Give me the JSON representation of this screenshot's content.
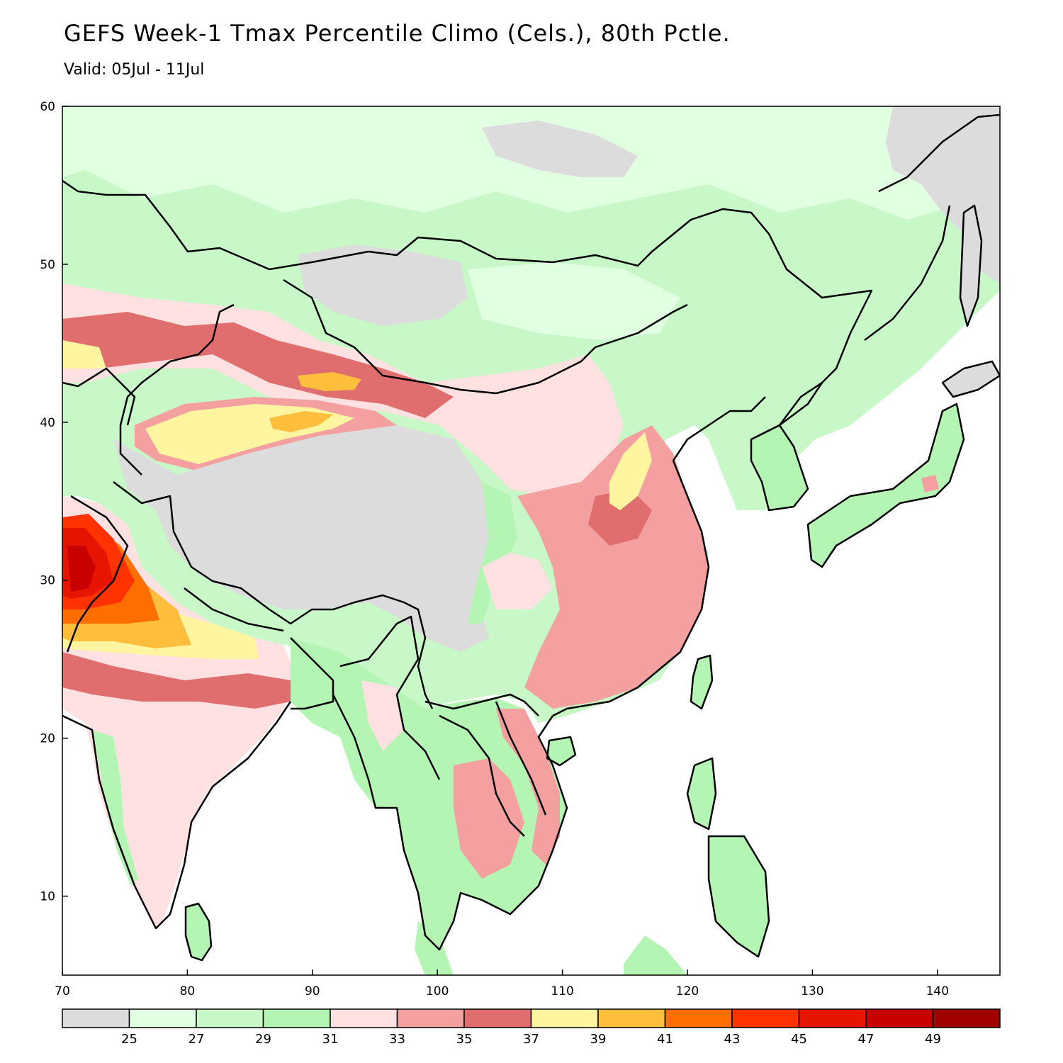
{
  "title": "GEFS Week-1 Tmax Percentile Climo (Cels.), 80th Pctle.",
  "subtitle": "Valid: 05Jul - 11Jul",
  "map": {
    "lon_range": [
      70,
      145
    ],
    "lat_range": [
      5,
      60
    ],
    "x_ticks": [
      "70",
      "80",
      "90",
      "100",
      "110",
      "120",
      "130",
      "140"
    ],
    "y_ticks": [
      "10",
      "20",
      "30",
      "40",
      "50",
      "60"
    ],
    "water_color": "#ffffff",
    "border_color": "#000000"
  },
  "colorbar": {
    "colors": [
      "#dcdcdc",
      "#e1ffe1",
      "#c8f7c8",
      "#b4f5b4",
      "#ffe1e1",
      "#f4a0a0",
      "#e06e6e",
      "#fff5a0",
      "#ffbe3c",
      "#ff6e00",
      "#ff3200",
      "#e61400",
      "#c80000",
      "#a00000"
    ],
    "labels": [
      "25",
      "27",
      "29",
      "31",
      "33",
      "35",
      "37",
      "39",
      "41",
      "43",
      "45",
      "47",
      "49"
    ]
  }
}
